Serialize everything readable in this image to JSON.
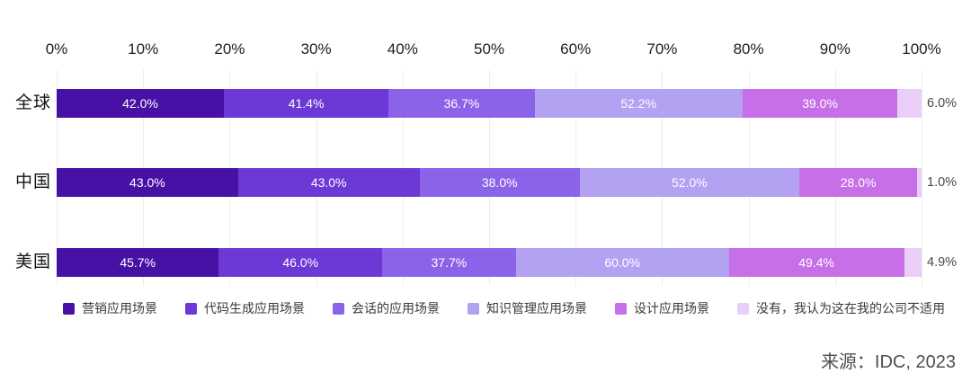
{
  "source": "来源：IDC, 2023",
  "colors": {
    "grid": "#ececec",
    "axis_text": "#1f1f1f",
    "row_label_text": "#141414",
    "segment_label_inside": "#ffffff",
    "segment_label_outside": "#4a4a4a",
    "legend_text": "#3a3a3a",
    "source_text": "#4f4f4f",
    "background": "#ffffff"
  },
  "chart_data": {
    "type": "bar",
    "orientation": "horizontal",
    "stacked": true,
    "normalized_to_full_width": true,
    "categories": [
      "全球",
      "中国",
      "美国"
    ],
    "series": [
      {
        "name": "营销应用场景",
        "color": "#4711A6",
        "values": [
          42.0,
          43.0,
          45.7
        ]
      },
      {
        "name": "代码生成应用场景",
        "color": "#6C38D6",
        "values": [
          41.4,
          43.0,
          46.0
        ]
      },
      {
        "name": "会话的应用场景",
        "color": "#8A63E8",
        "values": [
          36.7,
          38.0,
          37.7
        ]
      },
      {
        "name": "知识管理应用场景",
        "color": "#B3A1F2",
        "values": [
          52.2,
          52.0,
          60.0
        ]
      },
      {
        "name": "设计应用场景",
        "color": "#C66FE6",
        "values": [
          39.0,
          28.0,
          49.4
        ]
      },
      {
        "name": "没有，我认为这在我的公司不适用",
        "color": "#E9CFF7",
        "values": [
          6.0,
          1.0,
          4.9
        ]
      }
    ],
    "value_label_format": "0.0%",
    "last_series_label_position": "outside-right",
    "x_axis": {
      "ticks": [
        "0%",
        "10%",
        "20%",
        "30%",
        "40%",
        "50%",
        "60%",
        "70%",
        "80%",
        "90%",
        "100%"
      ],
      "range": [
        0,
        100
      ],
      "grid": true
    },
    "legend_position": "bottom"
  }
}
